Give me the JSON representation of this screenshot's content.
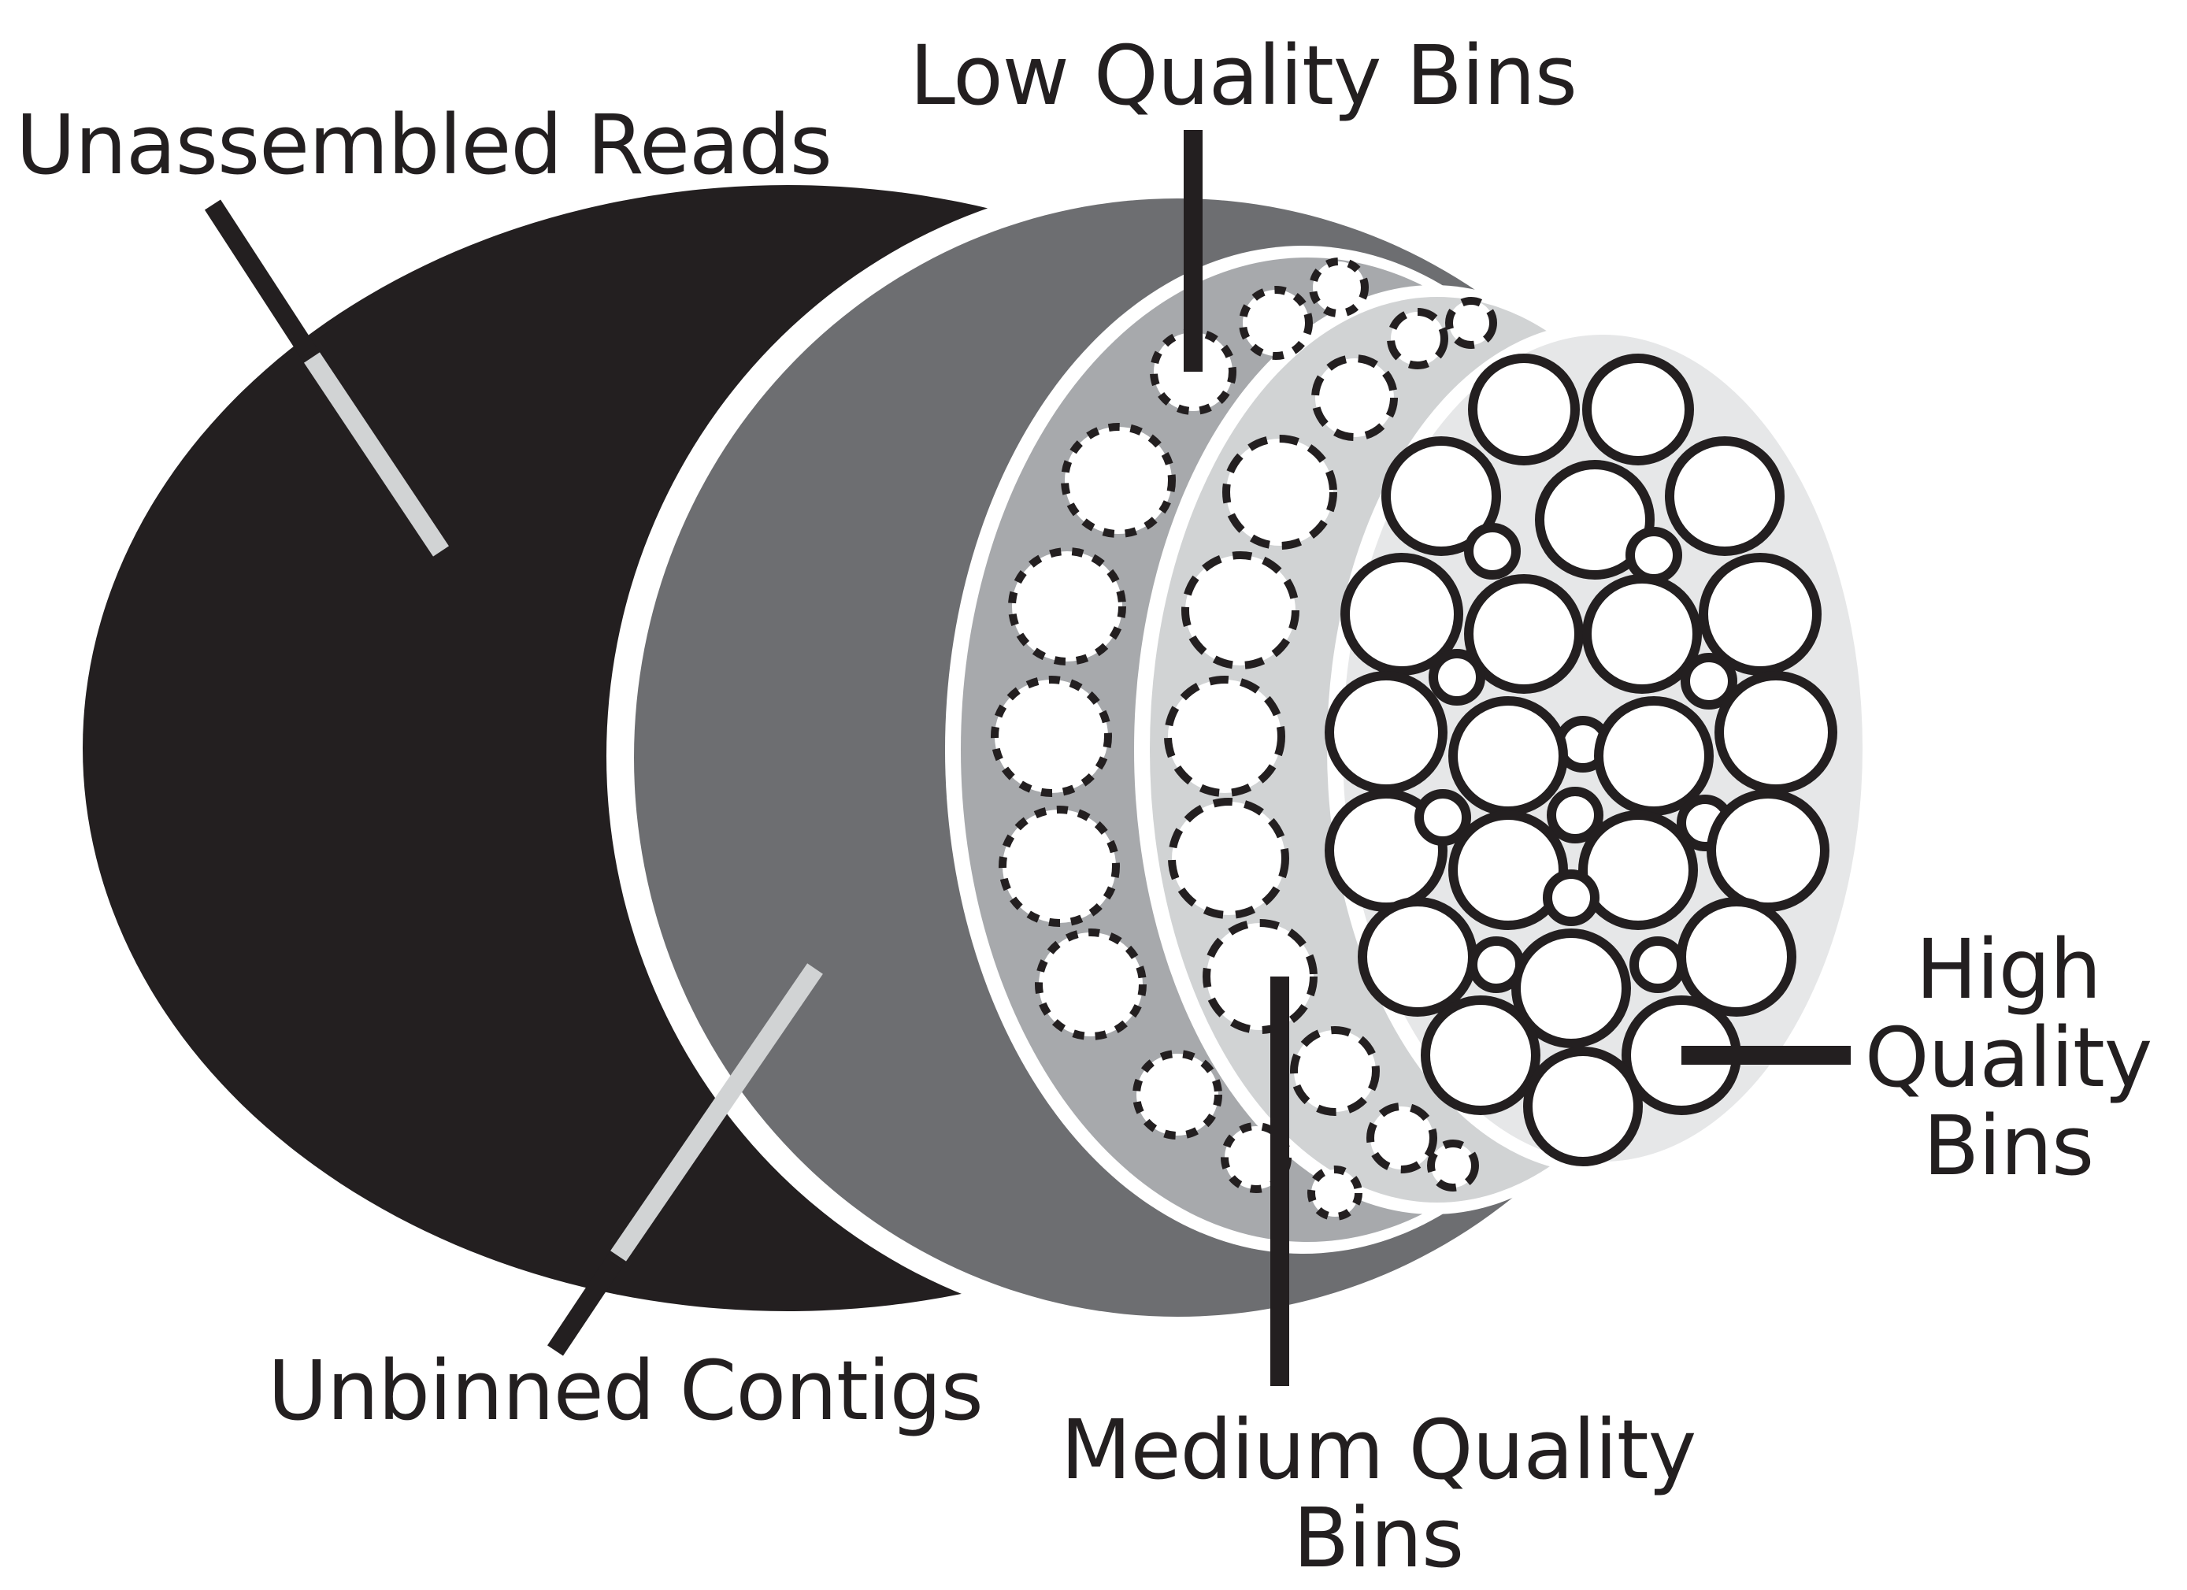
{
  "labels": {
    "unassembled_reads": "Unassembled Reads",
    "low_quality_bins": "Low Quality Bins",
    "unbinned_contigs": "Unbinned Contigs",
    "medium_quality_line1": "Medium Quality",
    "medium_quality_line2": "Bins",
    "high_quality_line1": "High",
    "high_quality_line2": "Quality",
    "high_quality_line3": "Bins"
  },
  "colors": {
    "unassembled_reads": "#231f20",
    "unbinned_contigs": "#6d6e71",
    "low_quality_band": "#a7a9ac",
    "medium_quality_band": "#d1d3d4",
    "high_quality_band": "#e6e7e8",
    "bin_fill": "#ffffff",
    "outline": "#231f20"
  },
  "bin_outline_styles": {
    "low_quality": "dotted",
    "medium_quality": "dashed",
    "high_quality": "solid"
  }
}
